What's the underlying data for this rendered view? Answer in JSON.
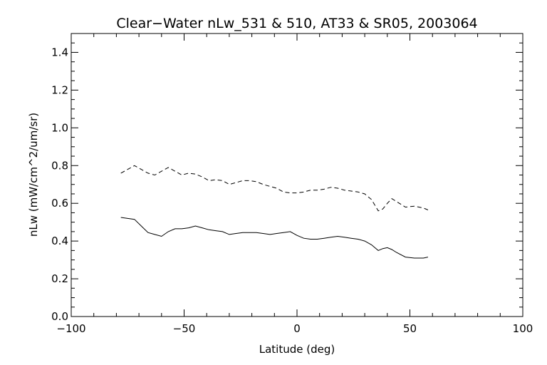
{
  "chart_data": {
    "type": "line",
    "title": "Clear−Water nLw_531 & 510, AT33 & SR05, 2003064",
    "xlabel": "Latitude (deg)",
    "ylabel": "nLw (mW/cm^2/um/sr)",
    "xlim": [
      -100,
      100
    ],
    "ylim": [
      0.0,
      1.5
    ],
    "x_ticks": [
      -100,
      -50,
      0,
      50,
      100
    ],
    "x_tick_labels": [
      "−100",
      "−50",
      "0",
      "50",
      "100"
    ],
    "y_ticks": [
      0.0,
      0.2,
      0.4,
      0.6,
      0.8,
      1.0,
      1.2,
      1.4
    ],
    "y_tick_labels": [
      "0.0",
      "0.2",
      "0.4",
      "0.6",
      "0.8",
      "1.0",
      "1.2",
      "1.4"
    ],
    "grid": false,
    "legend": "none",
    "series": [
      {
        "style": "dashed",
        "color": "#000000",
        "x": [
          -78,
          -75,
          -72,
          -69,
          -66,
          -63,
          -60,
          -57,
          -54,
          -51,
          -48,
          -45,
          -42,
          -39,
          -36,
          -33,
          -30,
          -27,
          -24,
          -21,
          -18,
          -15,
          -12,
          -9,
          -6,
          -3,
          0,
          3,
          6,
          9,
          12,
          15,
          18,
          21,
          24,
          27,
          30,
          33,
          36,
          38,
          40,
          42,
          44,
          48,
          52,
          56,
          58
        ],
        "y": [
          0.76,
          0.78,
          0.8,
          0.78,
          0.76,
          0.75,
          0.77,
          0.79,
          0.77,
          0.75,
          0.76,
          0.755,
          0.74,
          0.72,
          0.725,
          0.72,
          0.7,
          0.71,
          0.72,
          0.72,
          0.715,
          0.7,
          0.69,
          0.68,
          0.66,
          0.655,
          0.655,
          0.66,
          0.67,
          0.67,
          0.675,
          0.685,
          0.68,
          0.67,
          0.665,
          0.66,
          0.65,
          0.62,
          0.56,
          0.57,
          0.6,
          0.625,
          0.61,
          0.58,
          0.585,
          0.575,
          0.565
        ]
      },
      {
        "style": "solid",
        "color": "#000000",
        "x": [
          -78,
          -75,
          -72,
          -69,
          -66,
          -63,
          -60,
          -57,
          -54,
          -51,
          -48,
          -45,
          -42,
          -39,
          -36,
          -33,
          -30,
          -27,
          -24,
          -21,
          -18,
          -15,
          -12,
          -9,
          -6,
          -3,
          0,
          3,
          6,
          9,
          12,
          15,
          18,
          21,
          24,
          27,
          30,
          33,
          36,
          38,
          40,
          42,
          44,
          48,
          52,
          56,
          58
        ],
        "y": [
          0.525,
          0.52,
          0.515,
          0.48,
          0.445,
          0.435,
          0.425,
          0.45,
          0.465,
          0.465,
          0.47,
          0.48,
          0.47,
          0.46,
          0.455,
          0.45,
          0.435,
          0.44,
          0.445,
          0.445,
          0.445,
          0.44,
          0.435,
          0.44,
          0.445,
          0.45,
          0.43,
          0.415,
          0.41,
          0.41,
          0.415,
          0.42,
          0.425,
          0.42,
          0.415,
          0.41,
          0.4,
          0.38,
          0.35,
          0.36,
          0.365,
          0.355,
          0.34,
          0.315,
          0.31,
          0.31,
          0.315
        ]
      }
    ]
  }
}
